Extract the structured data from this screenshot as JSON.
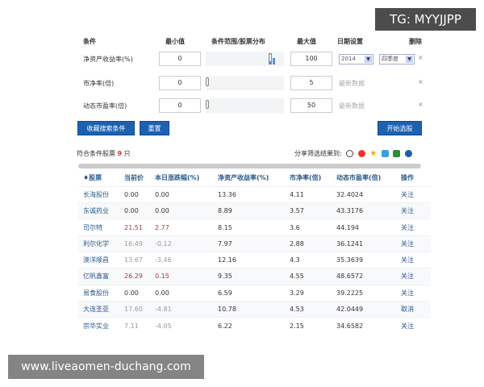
{
  "watermarks": {
    "top": "TG: MYYJJPP",
    "bottom": "www.liveaomen-duchang.com"
  },
  "criteria_header": {
    "condition": "条件",
    "min": "最小值",
    "range": "条件范围/股票分布",
    "max": "最大值",
    "date": "日期设置",
    "delete": "删除"
  },
  "criteria": [
    {
      "label": "净资产收益率(%)",
      "min": "0",
      "max": "100",
      "year": "2014",
      "quarter": "四季度"
    },
    {
      "label": "市净率(倍)",
      "min": "0",
      "max": "5",
      "date_text": "最新数据"
    },
    {
      "label": "动态市盈率(倍)",
      "min": "0",
      "max": "50",
      "date_text": "最新数据"
    }
  ],
  "delete_icon": "×",
  "buttons": {
    "save": "收藏搜索条件",
    "reset": "重置",
    "start": "开始选股"
  },
  "result": {
    "prefix": "符合条件股票",
    "count": "9",
    "suffix": "只",
    "share_label": "分享筛选结果到:"
  },
  "share_icons": [
    "sohu-icon",
    "weibo-icon",
    "star-icon",
    "qzone-icon",
    "douban-icon",
    "renren-icon"
  ],
  "table": {
    "headers": [
      "♦股票",
      "当前价",
      "本日涨跌幅(%)",
      "净资产收益率(%)",
      "市净率(倍)",
      "动态市盈率(倍)",
      "操作"
    ],
    "rows": [
      [
        "长海股份",
        "0.00",
        "0.00",
        "13.36",
        "4.11",
        "32.4024",
        "关注"
      ],
      [
        "东诚药业",
        "0.00",
        "0.00",
        "8.89",
        "3.57",
        "43.3176",
        "关注"
      ],
      [
        "司尔特",
        "21.51",
        "2.77",
        "8.15",
        "3.6",
        "44.194",
        "关注"
      ],
      [
        "利尔化学",
        "16.49",
        "-0.12",
        "7.97",
        "2.88",
        "36.1241",
        "关注"
      ],
      [
        "澳洋顺昌",
        "13.67",
        "-3.46",
        "12.16",
        "4.3",
        "35.3639",
        "关注"
      ],
      [
        "亿帆鑫富",
        "26.29",
        "0.15",
        "9.35",
        "4.55",
        "48.6572",
        "关注"
      ],
      [
        "易食股份",
        "0.00",
        "0.00",
        "6.59",
        "3.29",
        "39.2225",
        "关注"
      ],
      [
        "大连圣亚",
        "17.60",
        "-4.81",
        "10.78",
        "4.53",
        "42.0449",
        "取消"
      ],
      [
        "宗华实业",
        "7.11",
        "-4.05",
        "6.22",
        "2.15",
        "34.6582",
        "关注"
      ]
    ]
  },
  "colors": {
    "button": "#1d62b0",
    "up": "#b33",
    "down": "#999"
  }
}
